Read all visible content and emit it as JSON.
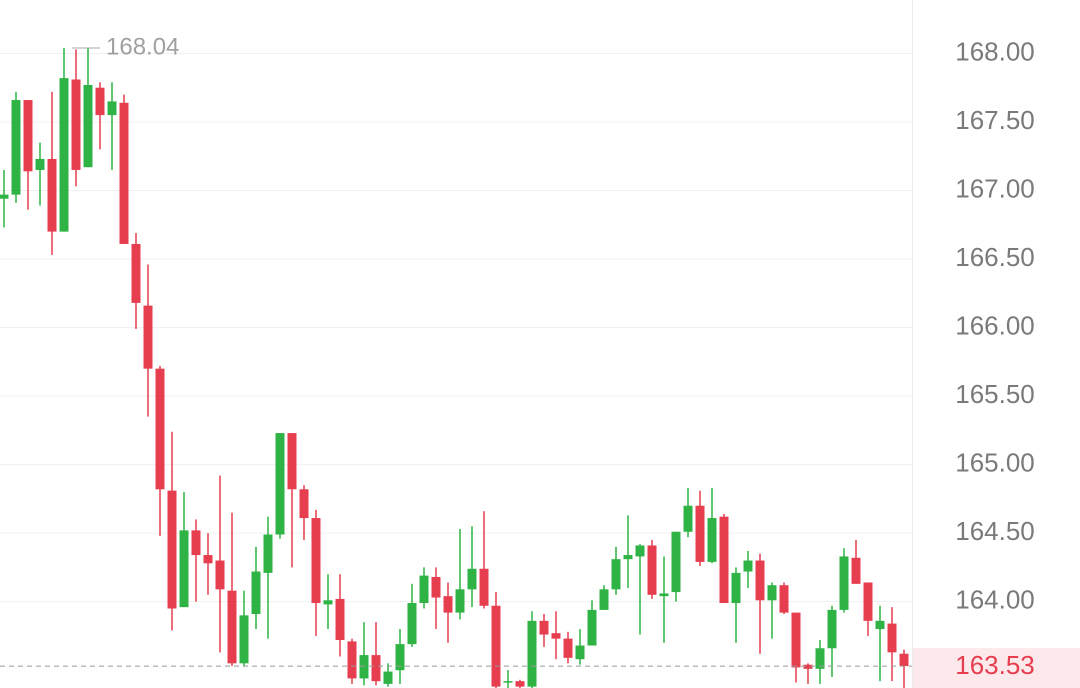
{
  "chart_data": {
    "type": "candlestick",
    "open": [
      166.94,
      166.97,
      167.66,
      167.15,
      167.23,
      166.7,
      167.81,
      167.17,
      167.75,
      167.55,
      167.64,
      166.61,
      166.16,
      165.7,
      164.81,
      163.96,
      164.52,
      164.34,
      164.3,
      164.08,
      163.55,
      163.91,
      164.21,
      164.49,
      165.23,
      164.82,
      164.61,
      163.98,
      164.02,
      163.71,
      163.44,
      163.61,
      163.4,
      163.5,
      163.69,
      163.99,
      164.18,
      164.04,
      163.92,
      164.09,
      164.24,
      163.97,
      163.41,
      163.42,
      163.38,
      163.86,
      163.77,
      163.73,
      163.58,
      163.68,
      163.94,
      164.09,
      164.31,
      164.33,
      164.41,
      164.04,
      164.07,
      164.51,
      164.7,
      164.29,
      164.62,
      163.99,
      164.22,
      164.3,
      164.01,
      164.12,
      163.92,
      163.54,
      163.51,
      163.66,
      163.94,
      164.32,
      164.14,
      163.8,
      163.84,
      163.62
    ],
    "high": [
      167.15,
      167.72,
      167.66,
      167.35,
      167.72,
      168.04,
      168.03,
      168.04,
      167.79,
      167.79,
      167.7,
      166.69,
      166.46,
      165.72,
      165.24,
      164.8,
      164.6,
      164.5,
      164.92,
      164.65,
      164.08,
      164.4,
      164.62,
      165.23,
      165.23,
      164.85,
      164.67,
      164.2,
      164.2,
      163.73,
      163.85,
      163.85,
      163.55,
      163.8,
      164.13,
      164.25,
      164.25,
      164.14,
      164.53,
      164.55,
      164.66,
      164.07,
      163.5,
      163.43,
      163.93,
      163.91,
      163.93,
      163.78,
      163.8,
      164.01,
      164.12,
      164.4,
      164.63,
      164.42,
      164.45,
      164.33,
      164.51,
      164.83,
      164.81,
      164.83,
      164.64,
      164.25,
      164.37,
      164.35,
      164.14,
      164.14,
      163.92,
      163.55,
      163.72,
      163.97,
      164.39,
      164.45,
      164.14,
      163.97,
      163.96,
      163.65
    ],
    "low": [
      166.73,
      166.91,
      166.86,
      166.89,
      166.53,
      166.7,
      167.03,
      167.17,
      167.3,
      167.15,
      166.61,
      165.99,
      165.35,
      164.48,
      163.79,
      163.96,
      164.0,
      164.05,
      163.63,
      163.53,
      163.53,
      163.8,
      163.73,
      164.46,
      164.25,
      164.45,
      163.75,
      163.8,
      163.6,
      163.4,
      163.39,
      163.39,
      163.38,
      163.4,
      163.67,
      163.95,
      163.8,
      163.7,
      163.87,
      163.96,
      163.95,
      163.37,
      163.37,
      163.37,
      163.37,
      163.67,
      163.58,
      163.55,
      163.54,
      163.68,
      163.94,
      164.05,
      164.1,
      163.76,
      164.02,
      163.7,
      164.0,
      164.47,
      164.26,
      164.28,
      163.99,
      163.7,
      164.1,
      163.62,
      163.73,
      163.91,
      163.41,
      163.4,
      163.4,
      163.45,
      163.92,
      164.13,
      163.75,
      163.42,
      163.42,
      163.37
    ],
    "close": [
      166.97,
      167.66,
      167.14,
      167.23,
      166.7,
      167.82,
      167.15,
      167.77,
      167.55,
      167.65,
      166.61,
      166.18,
      165.7,
      164.82,
      163.95,
      164.52,
      164.34,
      164.28,
      164.09,
      163.55,
      163.9,
      164.22,
      164.49,
      165.23,
      164.82,
      164.61,
      163.99,
      164.01,
      163.72,
      163.44,
      163.61,
      163.42,
      163.49,
      163.69,
      163.99,
      164.19,
      164.03,
      163.92,
      164.09,
      164.24,
      163.97,
      163.38,
      163.42,
      163.38,
      163.86,
      163.76,
      163.73,
      163.59,
      163.68,
      163.94,
      164.09,
      164.31,
      164.34,
      164.41,
      164.05,
      164.06,
      164.51,
      164.7,
      164.29,
      164.61,
      163.99,
      164.21,
      164.3,
      164.01,
      164.12,
      163.92,
      163.52,
      163.51,
      163.66,
      163.94,
      164.33,
      164.13,
      163.86,
      163.86,
      163.63,
      163.53
    ],
    "up_color": "#2fb344",
    "down_color": "#e63e4f",
    "max_price": 168.04,
    "last_price": 163.53,
    "ylim": [
      163.37,
      168.39
    ],
    "yticks": [
      {
        "value": 164,
        "label": "164.00"
      },
      {
        "value": 164.5,
        "label": "164.50"
      },
      {
        "value": 165,
        "label": "165.00"
      },
      {
        "value": 165.5,
        "label": "165.50"
      },
      {
        "value": 166,
        "label": "166.00"
      },
      {
        "value": 166.5,
        "label": "166.50"
      },
      {
        "value": 167,
        "label": "167.00"
      },
      {
        "value": 167.5,
        "label": "167.50"
      },
      {
        "value": 168,
        "label": "168.00"
      }
    ],
    "grid": true
  }
}
